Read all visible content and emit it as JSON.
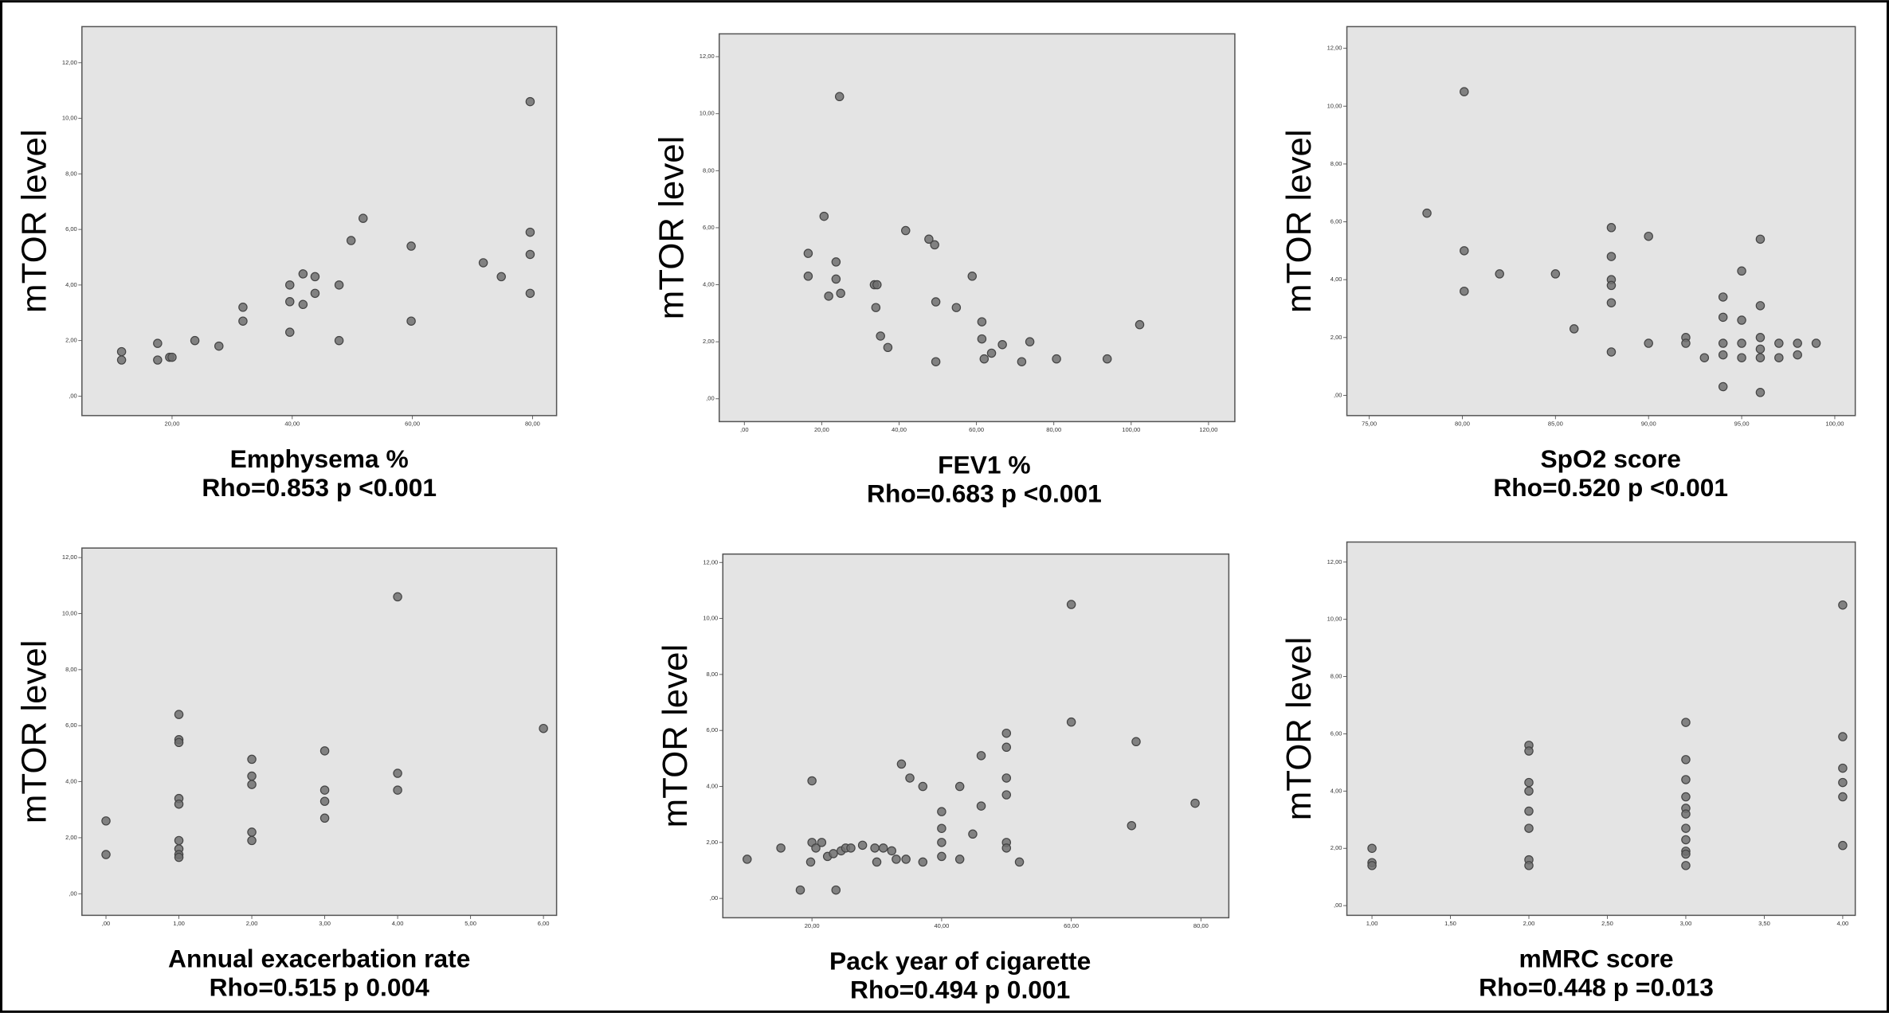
{
  "chart_data": [
    {
      "type": "scatter",
      "y_label": "mTOR level",
      "x_label": "Emphysema %",
      "annotation": "Rho=0.853  p <0.001",
      "color": "#707070",
      "x": [
        11.6,
        11.6,
        17.6,
        17.6,
        19.6,
        20.0,
        23.8,
        27.8,
        31.8,
        31.8,
        39.6,
        39.6,
        39.6,
        41.8,
        41.8,
        43.8,
        43.8,
        47.8,
        47.8,
        49.8,
        51.8,
        59.8,
        59.8,
        71.8,
        74.8,
        79.6,
        79.6,
        79.6,
        79.6
      ],
      "values": [
        1.6,
        1.3,
        1.9,
        1.3,
        1.4,
        1.4,
        2.0,
        1.8,
        3.2,
        2.7,
        4.0,
        3.4,
        2.3,
        4.4,
        3.3,
        4.3,
        3.7,
        4.0,
        2.0,
        5.6,
        6.4,
        5.4,
        2.7,
        4.8,
        4.3,
        10.6,
        5.9,
        5.1,
        3.7
      ],
      "xlim": [
        5,
        84
      ],
      "ylim": [
        -0.7,
        13.3
      ],
      "xticks": [
        {
          "value": 20,
          "label": "20,00"
        },
        {
          "value": 40,
          "label": "40,00"
        },
        {
          "value": 60,
          "label": "60,00"
        },
        {
          "value": 80,
          "label": "80,00"
        }
      ],
      "yticks": [
        {
          "value": 0,
          "label": ",00"
        },
        {
          "value": 2,
          "label": "2,00"
        },
        {
          "value": 4,
          "label": "4,00"
        },
        {
          "value": 6,
          "label": "6,00"
        },
        {
          "value": 8,
          "label": "8,00"
        },
        {
          "value": 10,
          "label": "10,00"
        },
        {
          "value": 12,
          "label": "12,00"
        }
      ]
    },
    {
      "type": "scatter",
      "y_label": "mTOR level",
      "x_label": "FEV1 %",
      "annotation": "Rho=0.683  p <0.001",
      "color": "#707070",
      "x": [
        16.5,
        16.5,
        20.6,
        23.7,
        23.7,
        21.8,
        24.9,
        24.6,
        33.6,
        34.3,
        34.0,
        35.2,
        37.1,
        41.7,
        47.7,
        49.2,
        49.5,
        49.5,
        54.8,
        58.9,
        61.4,
        61.4,
        62.0,
        63.9,
        66.7,
        71.7,
        73.8,
        80.7,
        93.8,
        102.2
      ],
      "values": [
        5.1,
        4.3,
        6.4,
        4.8,
        4.2,
        3.6,
        3.7,
        10.6,
        4.0,
        4.0,
        3.2,
        2.2,
        1.8,
        5.9,
        5.6,
        5.4,
        3.4,
        1.3,
        3.2,
        4.3,
        2.7,
        2.1,
        1.4,
        1.6,
        1.9,
        1.3,
        2.0,
        1.4,
        1.4,
        2.6
      ],
      "xlim": [
        -6.5,
        126.8
      ],
      "ylim": [
        -0.8,
        12.8
      ],
      "xticks": [
        {
          "value": 0,
          "label": ",00"
        },
        {
          "value": 20,
          "label": "20,00"
        },
        {
          "value": 40,
          "label": "40,00"
        },
        {
          "value": 60,
          "label": "60,00"
        },
        {
          "value": 80,
          "label": "80,00"
        },
        {
          "value": 100,
          "label": "100,00"
        },
        {
          "value": 120,
          "label": "120,00"
        }
      ],
      "yticks": [
        {
          "value": 0,
          "label": ",00"
        },
        {
          "value": 2,
          "label": "2,00"
        },
        {
          "value": 4,
          "label": "4,00"
        },
        {
          "value": 6,
          "label": "6,00"
        },
        {
          "value": 8,
          "label": "8,00"
        },
        {
          "value": 10,
          "label": "10,00"
        },
        {
          "value": 12,
          "label": "12,00"
        }
      ]
    },
    {
      "type": "scatter",
      "y_label": "mTOR level",
      "x_label": "SpO2 score",
      "annotation": "Rho=0.520  p <0.001",
      "color": "#707070",
      "x": [
        78.1,
        80.1,
        80.1,
        80.1,
        82,
        85,
        86,
        88,
        88,
        88,
        88,
        88,
        88,
        90,
        90,
        92,
        92,
        93,
        94,
        94,
        94,
        94,
        94,
        95,
        95,
        95,
        95,
        96,
        96,
        96,
        96,
        96,
        96,
        97,
        97,
        98,
        98,
        99
      ],
      "values": [
        6.3,
        10.5,
        5.0,
        3.6,
        4.2,
        4.2,
        2.3,
        5.8,
        4.8,
        4.0,
        3.8,
        3.2,
        1.5,
        5.5,
        1.8,
        2.0,
        1.8,
        1.3,
        3.4,
        2.7,
        1.8,
        1.4,
        0.3,
        4.3,
        2.6,
        1.8,
        1.3,
        5.4,
        3.1,
        2.0,
        1.6,
        1.3,
        0.1,
        1.8,
        1.3,
        1.8,
        1.4,
        1.8
      ],
      "xlim": [
        73.8,
        101.1
      ],
      "ylim": [
        -0.7,
        12.75
      ],
      "xticks": [
        {
          "value": 75,
          "label": "75,00"
        },
        {
          "value": 80,
          "label": "80,00"
        },
        {
          "value": 85,
          "label": "85,00"
        },
        {
          "value": 90,
          "label": "90,00"
        },
        {
          "value": 95,
          "label": "95,00"
        },
        {
          "value": 100,
          "label": "100,00"
        }
      ],
      "yticks": [
        {
          "value": 0,
          "label": ",00"
        },
        {
          "value": 2,
          "label": "2,00"
        },
        {
          "value": 4,
          "label": "4,00"
        },
        {
          "value": 6,
          "label": "6,00"
        },
        {
          "value": 8,
          "label": "8,00"
        },
        {
          "value": 10,
          "label": "10,00"
        },
        {
          "value": 12,
          "label": "12,00"
        }
      ]
    },
    {
      "type": "scatter",
      "y_label": "mTOR level",
      "x_label": "Annual exacerbation rate",
      "annotation": "Rho=0.515  p 0.004",
      "color": "#707070",
      "x": [
        0,
        0,
        1,
        1,
        1,
        1,
        1,
        1,
        1,
        1,
        1,
        2,
        2,
        2,
        2,
        2,
        3,
        3,
        3,
        3,
        4,
        4,
        4,
        6
      ],
      "values": [
        2.6,
        1.4,
        6.4,
        5.5,
        5.4,
        3.4,
        3.2,
        1.9,
        1.6,
        1.4,
        1.3,
        4.8,
        4.2,
        3.9,
        2.2,
        1.9,
        5.1,
        3.7,
        3.3,
        2.7,
        10.6,
        4.3,
        3.7,
        5.9
      ],
      "xlim": [
        -0.33,
        6.18
      ],
      "ylim": [
        -0.77,
        12.34
      ],
      "xticks": [
        {
          "value": 0,
          "label": ",00"
        },
        {
          "value": 1,
          "label": "1,00"
        },
        {
          "value": 2,
          "label": "2,00"
        },
        {
          "value": 3,
          "label": "3,00"
        },
        {
          "value": 4,
          "label": "4,00"
        },
        {
          "value": 5,
          "label": "5,00"
        },
        {
          "value": 6,
          "label": "6,00"
        }
      ],
      "yticks": [
        {
          "value": 0,
          "label": ",00"
        },
        {
          "value": 2,
          "label": "2,00"
        },
        {
          "value": 4,
          "label": "4,00"
        },
        {
          "value": 6,
          "label": "6,00"
        },
        {
          "value": 8,
          "label": "8,00"
        },
        {
          "value": 10,
          "label": "10,00"
        },
        {
          "value": 12,
          "label": "12,00"
        }
      ]
    },
    {
      "type": "scatter",
      "y_label": "mTOR level",
      "x_label": "Pack year of cigarette",
      "annotation": "Rho=0.494  p 0.001",
      "color": "#707070",
      "x": [
        10,
        15.2,
        18.2,
        20,
        20,
        20.6,
        19.8,
        21.5,
        22.4,
        23.7,
        23.3,
        24.5,
        25.2,
        26,
        27.8,
        29.7,
        30,
        31,
        32.3,
        33,
        33.8,
        34.5,
        35.1,
        37.1,
        37.1,
        40,
        40,
        40,
        40,
        42.8,
        42.8,
        44.8,
        46.1,
        46.1,
        50,
        50,
        50,
        50,
        50,
        50,
        52,
        60,
        60,
        69.3,
        70,
        79.1
      ],
      "values": [
        1.4,
        1.8,
        0.3,
        4.2,
        2.0,
        1.8,
        1.3,
        2.0,
        1.5,
        0.3,
        1.6,
        1.7,
        1.8,
        1.8,
        1.9,
        1.8,
        1.3,
        1.8,
        1.7,
        1.4,
        4.8,
        1.4,
        4.3,
        4.0,
        1.3,
        3.1,
        2.5,
        2.0,
        1.5,
        4.0,
        1.4,
        2.3,
        5.1,
        3.3,
        5.9,
        5.4,
        4.3,
        3.7,
        2.0,
        1.8,
        1.3,
        10.5,
        6.3,
        2.6,
        5.6,
        3.4
      ],
      "xlim": [
        6.25,
        84.3
      ],
      "ylim": [
        -0.69,
        12.3
      ],
      "xticks": [
        {
          "value": 20,
          "label": "20,00"
        },
        {
          "value": 40,
          "label": "40,00"
        },
        {
          "value": 60,
          "label": "60,00"
        },
        {
          "value": 80,
          "label": "80,00"
        }
      ],
      "yticks": [
        {
          "value": 0,
          "label": ",00"
        },
        {
          "value": 2,
          "label": "2,00"
        },
        {
          "value": 4,
          "label": "4,00"
        },
        {
          "value": 6,
          "label": "6,00"
        },
        {
          "value": 8,
          "label": "8,00"
        },
        {
          "value": 10,
          "label": "10,00"
        },
        {
          "value": 12,
          "label": "12,00"
        }
      ]
    },
    {
      "type": "scatter",
      "y_label": "mTOR level",
      "x_label": "mMRC score",
      "annotation": "Rho=0.448  p =0.013",
      "color": "#707070",
      "x": [
        1,
        1,
        1,
        2,
        2,
        2,
        2,
        2,
        2,
        2,
        2,
        3,
        3,
        3,
        3,
        3,
        3,
        3,
        3,
        3,
        3,
        3,
        4,
        4,
        4,
        4,
        4,
        4
      ],
      "values": [
        2.0,
        1.5,
        1.4,
        5.6,
        5.4,
        4.3,
        4.0,
        3.3,
        2.7,
        1.6,
        1.4,
        6.4,
        5.1,
        4.4,
        3.8,
        3.4,
        3.2,
        2.7,
        2.3,
        1.9,
        1.8,
        1.4,
        10.5,
        5.9,
        4.8,
        4.3,
        3.8,
        2.1
      ],
      "xlim": [
        0.84,
        4.08
      ],
      "ylim": [
        -0.34,
        12.7
      ],
      "xticks": [
        {
          "value": 1,
          "label": "1,00"
        },
        {
          "value": 1.5,
          "label": "1,50"
        },
        {
          "value": 2,
          "label": "2,00"
        },
        {
          "value": 2.5,
          "label": "2,50"
        },
        {
          "value": 3,
          "label": "3,00"
        },
        {
          "value": 3.5,
          "label": "3,50"
        },
        {
          "value": 4,
          "label": "4,00"
        }
      ],
      "yticks": [
        {
          "value": 0,
          "label": ",00"
        },
        {
          "value": 2,
          "label": "2,00"
        },
        {
          "value": 4,
          "label": "4,00"
        },
        {
          "value": 6,
          "label": "6,00"
        },
        {
          "value": 8,
          "label": "8,00"
        },
        {
          "value": 10,
          "label": "10,00"
        },
        {
          "value": 12,
          "label": "12,00"
        }
      ]
    }
  ]
}
